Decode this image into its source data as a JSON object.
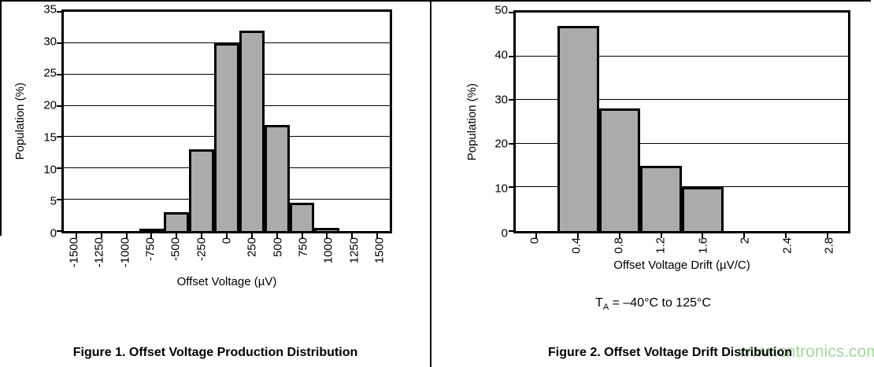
{
  "page": {
    "watermark": "www.cntronics.com"
  },
  "chart_data": [
    {
      "type": "bar",
      "caption": "Figure 1. Offset Voltage Production Distribution",
      "xlabel": "Offset Voltage (µV)",
      "ylabel": "Population (%)",
      "categories": [
        "-1500",
        "-1250",
        "-1000",
        "-750",
        "-500",
        "-250",
        "0",
        "250",
        "500",
        "750",
        "1000",
        "1250",
        "1500"
      ],
      "values": [
        0,
        0,
        0,
        0.3,
        3,
        13,
        30,
        32,
        17,
        4.5,
        0.5,
        0,
        0
      ],
      "ylim": [
        0,
        35
      ],
      "ytick_step": 5,
      "grid": true,
      "legend": "none",
      "bar_color": "#ababab"
    },
    {
      "type": "bar",
      "caption": "Figure 2. Offset Voltage Drift Distribution",
      "xlabel": "Offset Voltage Drift (µV/C)",
      "ylabel": "Population (%)",
      "categories": [
        "0",
        "0.4",
        "0.8",
        "1.2",
        "1.6",
        "2",
        "2.4",
        "2.8"
      ],
      "values": [
        0,
        47,
        28,
        15,
        10,
        0,
        0,
        0
      ],
      "ylim": [
        0,
        50
      ],
      "ytick_step": 10,
      "grid": true,
      "legend": "none",
      "bar_color": "#ababab",
      "annotation": {
        "pre": "T",
        "sub": "A",
        "post": " = –40°C to 125°C"
      }
    }
  ]
}
